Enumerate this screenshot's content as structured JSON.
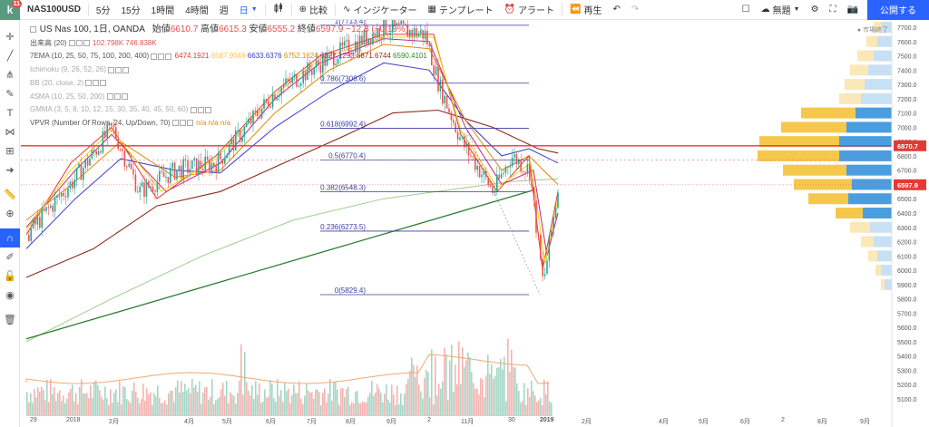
{
  "header": {
    "logo_letter": "k",
    "notification_count": "11",
    "symbol": "NAS100USD",
    "intervals": [
      "5分",
      "15分",
      "1時間",
      "4時間",
      "週"
    ],
    "active_interval": "日",
    "compare_label": "比較",
    "indicators_label": "インジケーター",
    "templates_label": "テンプレート",
    "alerts_label": "アラート",
    "replay_label": "再生",
    "layout_label": "無題",
    "publish_label": "公開する"
  },
  "legend": {
    "title": "US Nas 100, 1日, OANDA",
    "open_label": "始値",
    "open_value": "6610.7",
    "high_label": "高値",
    "high_value": "6615.3",
    "low_label": "安値",
    "low_value": "6555.2",
    "close_label": "終値",
    "close_value": "6597.9",
    "change_value": "−12.8 (−0.19%)",
    "volume_name": "出来高 (20)",
    "volume_values": [
      "102.798K",
      "746.838K"
    ],
    "ema_name": "7EMA (10, 25, 50, 75, 100, 200, 400)",
    "ema_values": [
      "6474.1921",
      "6587.9049",
      "6633.6376",
      "6752.1624",
      "6827.1293",
      "6871.6744",
      "6590.4101"
    ],
    "ichimoku_name": "Ichimoku (9, 26, 52, 26)",
    "bb_name": "BB (20, close, 2)",
    "sma_name": "4SMA (10, 25, 50, 200)",
    "gmma_name": "GMMA (3, 5, 8, 10, 12, 15, 30, 35, 40, 45, 50, 60)",
    "vpvr_name": "VPVR (Number Of Rows, 24, Up/Down, 70)",
    "vpvr_values": [
      "n/a",
      "n/a",
      "n/a"
    ]
  },
  "fib_levels": [
    {
      "label": "1(7713.4)",
      "value": 7713.4
    },
    {
      "label": "0.786(7308.6)",
      "value": 7308.6
    },
    {
      "label": "0.618(6992.4)",
      "value": 6992.4
    },
    {
      "label": "0.5(6770.4)",
      "value": 6770.4
    },
    {
      "label": "0.382(6548.3)",
      "value": 6548.3
    },
    {
      "label": "0.236(6273.5)",
      "value": 6273.5
    },
    {
      "label": "0(5829.4)",
      "value": 5829.4
    }
  ],
  "price_axis": {
    "ticks": [
      "7700.0",
      "7600.0",
      "7500.0",
      "7400.0",
      "7300.0",
      "7200.0",
      "7100.0",
      "7000.0",
      "6900.0",
      "6800.0",
      "6700.0",
      "6600.0",
      "6500.0",
      "6400.0",
      "6300.0",
      "6200.0",
      "6100.0",
      "6000.0",
      "5900.0",
      "5800.0",
      "5700.0",
      "5600.0",
      "5500.0",
      "5400.0",
      "5300.0",
      "5200.0",
      "5100.0"
    ],
    "red_line_label": "6870.7",
    "current_label": "6597.9",
    "market_status": "市場終了"
  },
  "time_axis": [
    "29",
    "2018",
    "2月",
    "4月",
    "5月",
    "6月",
    "7月",
    "8月",
    "9月",
    "2",
    "11月",
    "30",
    "2019",
    "2月",
    "4月",
    "5月",
    "6月",
    "2",
    "8月",
    "9月"
  ],
  "colors": {
    "accent": "#2962ff",
    "up": "#26a69a",
    "down": "#ef5350",
    "red_line": "#e53935",
    "vp_up": "#4a9ee0",
    "vp_down": "#f5c84c",
    "fib": "#3a3aa0"
  }
}
